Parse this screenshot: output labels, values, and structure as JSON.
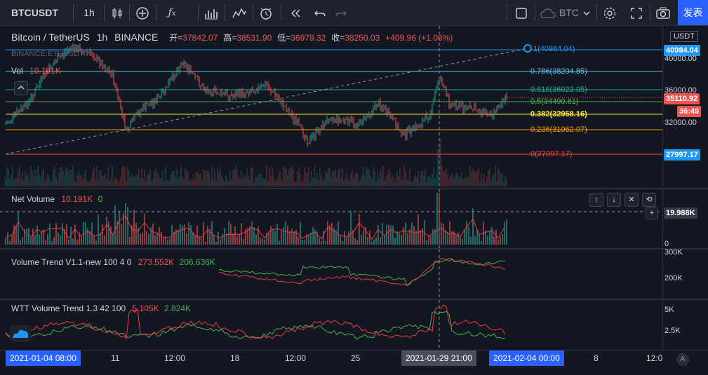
{
  "toolbar": {
    "symbol": "BTCUSDT",
    "interval": "1h",
    "currency": "BTC",
    "publish": "发表"
  },
  "main": {
    "title": "Bitcoin / TetherUS",
    "interval": "1h",
    "exchange": "BINANCE",
    "open_label": "开=",
    "open": "37842.07",
    "high_label": "高=",
    "high": "38531.90",
    "low_label": "低=",
    "low": "36979.32",
    "close_label": "收=",
    "close": "38250.03",
    "change": "+409.96 (+1.08%)",
    "compare_label": "BINANCE:ETHUSDT",
    "vol_label": "Vol",
    "vol_value": "10.191K"
  },
  "fib": [
    {
      "text": "1(40984.04)",
      "color": "#2196f3"
    },
    {
      "text": "0.786(38204.85)",
      "color": "#5ec0e8"
    },
    {
      "text": "0.618(36023.05)",
      "color": "#26a69a"
    },
    {
      "text": "0.5(34490.61)",
      "color": "#4caf50"
    },
    {
      "text": "0.382(32958.16)",
      "color": "#ffeb3b"
    },
    {
      "text": "0.236(31062.07)",
      "color": "#ff9800"
    },
    {
      "text": "0(27997.17)",
      "color": "#f44336"
    }
  ],
  "price_axis": {
    "unit": "USDT",
    "ticks": [
      "40000.00",
      "36000.00",
      "32000.00"
    ],
    "top_label": "40984.04",
    "last_price": "35110.92",
    "countdown": "36:49",
    "bottom_label": "27997.17"
  },
  "net_volume": {
    "title": "Net Volume",
    "value1": "10.191K",
    "value2": "0",
    "crosshair": "19.988K",
    "zero": "0"
  },
  "vt": {
    "title": "Volume Trend V1.1-new 100 4 0",
    "value1": "273.552K",
    "value2": "206.636K",
    "ticks": [
      "300K",
      "200K"
    ]
  },
  "wtt": {
    "title": "WTT Volume Trend 1.3 42 100",
    "value1": "5.105K",
    "value2": "2.824K",
    "ticks": [
      "5K",
      "2.5K"
    ]
  },
  "time_axis": {
    "start_label": "2021-01-04  08:00",
    "ticks": [
      "11",
      "12:00",
      "18",
      "12:00",
      "25",
      "8",
      "12:0"
    ],
    "crosshair_label": "2021-01-29  21:00",
    "end_label": "2021-02-04  00:00",
    "auto": "A"
  },
  "colors": {
    "up": "#26a69a",
    "down": "#ef5350",
    "green_line": "#4caf50",
    "red_line": "#f23645",
    "background": "#131722",
    "accent": "#2196f3"
  },
  "icons": [
    "candles-icon",
    "add-icon",
    "fx-icon",
    "bar-chart-icon",
    "indicator-icon",
    "alarm-icon",
    "replay-icon",
    "undo-icon",
    "redo-icon",
    "square-icon",
    "cloud-icon",
    "gear-icon",
    "fullscreen-icon",
    "camera-icon"
  ]
}
